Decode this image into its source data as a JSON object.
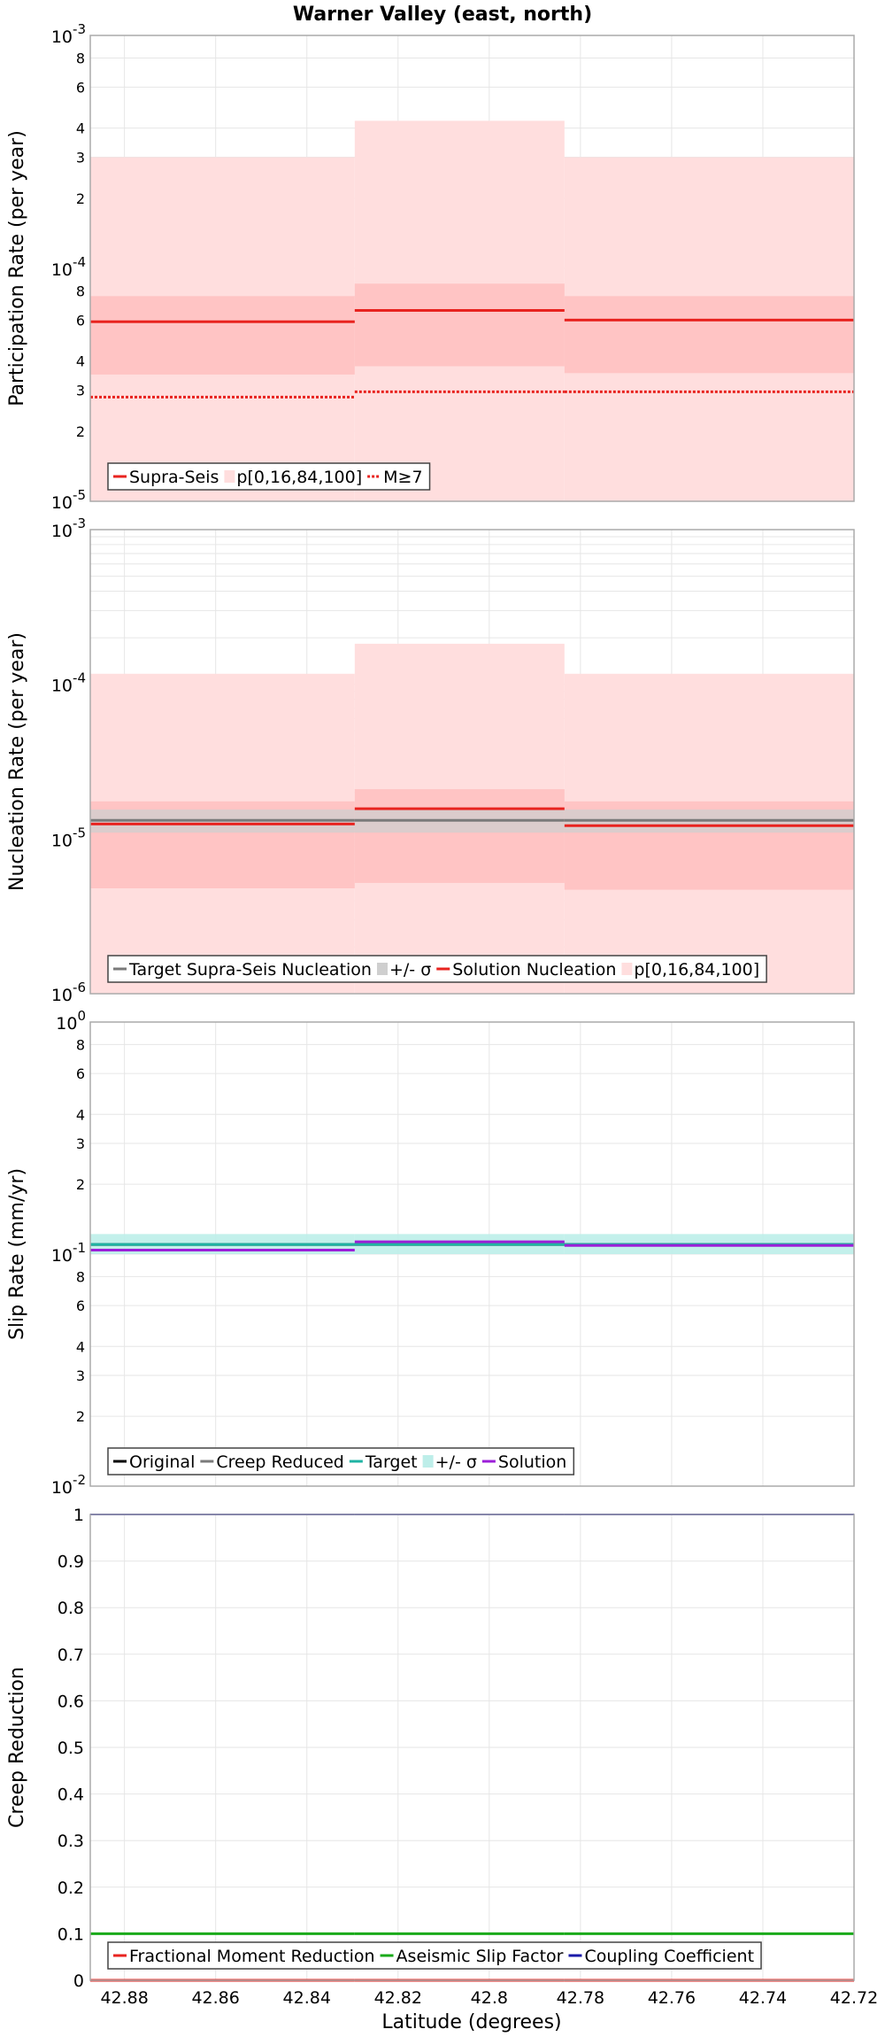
{
  "title": "Warner Valley (east, north)",
  "xlabel": "Latitude (degrees)",
  "x_ticks": [
    "42.88",
    "42.86",
    "42.84",
    "42.82",
    "42.8",
    "42.78",
    "42.76",
    "42.74",
    "42.72"
  ],
  "x_tick_values": [
    42.88,
    42.86,
    42.84,
    42.82,
    42.8,
    42.78,
    42.76,
    42.74,
    42.72
  ],
  "xlim": [
    42.8875,
    42.72
  ],
  "sections": [
    {
      "start": 42.8875,
      "end": 42.8295
    },
    {
      "start": 42.8295,
      "end": 42.7835
    },
    {
      "start": 42.7835,
      "end": 42.72
    }
  ],
  "colors": {
    "red": "#e8231f",
    "light_red": "#ffdede",
    "mid_red": "#ffc4c4",
    "gray": "#7a7a7a",
    "light_gray": "#cfcfcf",
    "cyan": "#1fb3a3",
    "light_cyan": "#bdeee9",
    "purple": "#9b1fd8",
    "blue": "#1a1aa8",
    "green": "#1aaa1a",
    "black": "#000000"
  },
  "chart_data": [
    {
      "type": "line",
      "ylabel": "Participation Rate (per year)",
      "yscale": "log",
      "ylim": [
        1e-05,
        0.001
      ],
      "y_major_ticks": [
        {
          "value": 1e-05,
          "base": "10",
          "exp": "-5"
        },
        {
          "value": 0.0001,
          "base": "10",
          "exp": "-4"
        },
        {
          "value": 0.001,
          "base": "10",
          "exp": "-3"
        }
      ],
      "y_minor_ticks": [
        {
          "value": 2e-05,
          "label": "2"
        },
        {
          "value": 3e-05,
          "label": "3"
        },
        {
          "value": 4e-05,
          "label": "4"
        },
        {
          "value": 6e-05,
          "label": "6"
        },
        {
          "value": 8e-05,
          "label": "8"
        },
        {
          "value": 0.0002,
          "label": "2"
        },
        {
          "value": 0.0003,
          "label": "3"
        },
        {
          "value": 0.0004,
          "label": "4"
        },
        {
          "value": 0.0006,
          "label": "6"
        },
        {
          "value": 0.0008,
          "label": "8"
        }
      ],
      "bands": [
        {
          "name": "p[0,16,84,100]",
          "kind": "outer",
          "lo": [
            1e-05,
            1e-05,
            1e-05
          ],
          "hi": [
            0.0003,
            0.00043,
            0.0003
          ]
        },
        {
          "name": "",
          "kind": "inner",
          "lo": [
            3.5e-05,
            3.8e-05,
            3.55e-05
          ],
          "hi": [
            7.6e-05,
            8.6e-05,
            7.6e-05
          ]
        }
      ],
      "series": [
        {
          "name": "Supra-Seis",
          "style": "solid",
          "values": [
            5.9e-05,
            6.6e-05,
            6e-05
          ]
        },
        {
          "name": "M≥7",
          "style": "dotted",
          "values": [
            2.8e-05,
            2.95e-05,
            2.95e-05
          ]
        }
      ],
      "legend": [
        "Supra-Seis",
        "p[0,16,84,100]",
        "M≥7"
      ],
      "legend_position": "bottom-left"
    },
    {
      "type": "line",
      "ylabel": "Nucleation Rate (per year)",
      "yscale": "log",
      "ylim": [
        1e-06,
        0.001
      ],
      "y_major_ticks": [
        {
          "value": 1e-06,
          "base": "10",
          "exp": "-6"
        },
        {
          "value": 1e-05,
          "base": "10",
          "exp": "-5"
        },
        {
          "value": 0.0001,
          "base": "10",
          "exp": "-4"
        },
        {
          "value": 0.001,
          "base": "10",
          "exp": "-3"
        }
      ],
      "y_minor_ticks": [],
      "bands": [
        {
          "name": "p[0,16,84,100]",
          "kind": "outer",
          "lo": [
            1e-06,
            1e-06,
            1e-06
          ],
          "hi": [
            0.000117,
            0.000183,
            0.000117
          ]
        },
        {
          "name": "",
          "kind": "inner",
          "lo": [
            4.8e-06,
            5.2e-06,
            4.7e-06
          ],
          "hi": [
            1.75e-05,
            2.1e-05,
            1.75e-05
          ]
        },
        {
          "name": "+/- σ",
          "kind": "sigma",
          "lo": [
            1.1e-05,
            1.1e-05,
            1.1e-05
          ],
          "hi": [
            1.55e-05,
            1.55e-05,
            1.55e-05
          ]
        }
      ],
      "series": [
        {
          "name": "Target Supra-Seis Nucleation",
          "style": "solid",
          "values": [
            1.32e-05,
            1.32e-05,
            1.32e-05
          ]
        },
        {
          "name": "Solution Nucleation",
          "style": "solid",
          "values": [
            1.25e-05,
            1.57e-05,
            1.22e-05
          ]
        }
      ],
      "legend": [
        "Target Supra-Seis Nucleation",
        "+/- σ",
        "Solution Nucleation",
        "p[0,16,84,100]"
      ],
      "legend_position": "bottom-left"
    },
    {
      "type": "line",
      "ylabel": "Slip Rate (mm/yr)",
      "yscale": "log",
      "ylim": [
        0.01,
        1
      ],
      "y_major_ticks": [
        {
          "value": 0.01,
          "base": "10",
          "exp": "-2"
        },
        {
          "value": 0.1,
          "base": "10",
          "exp": "-1"
        },
        {
          "value": 1,
          "base": "10",
          "exp": "0"
        }
      ],
      "y_minor_ticks": [
        {
          "value": 0.02,
          "label": "2"
        },
        {
          "value": 0.03,
          "label": "3"
        },
        {
          "value": 0.04,
          "label": "4"
        },
        {
          "value": 0.06,
          "label": "6"
        },
        {
          "value": 0.08,
          "label": "8"
        },
        {
          "value": 0.2,
          "label": "2"
        },
        {
          "value": 0.3,
          "label": "3"
        },
        {
          "value": 0.4,
          "label": "4"
        },
        {
          "value": 0.6,
          "label": "6"
        },
        {
          "value": 0.8,
          "label": "8"
        }
      ],
      "bands": [
        {
          "name": "+/- σ",
          "kind": "sigma",
          "lo": [
            0.1,
            0.1,
            0.1
          ],
          "hi": [
            0.122,
            0.122,
            0.122
          ]
        }
      ],
      "series": [
        {
          "name": "Original",
          "style": "solid",
          "values": [
            0.11,
            0.11,
            0.11
          ]
        },
        {
          "name": "Creep Reduced",
          "style": "solid",
          "values": [
            0.11,
            0.11,
            0.11
          ]
        },
        {
          "name": "Target",
          "style": "solid",
          "values": [
            0.11,
            0.11,
            0.11
          ]
        },
        {
          "name": "Solution",
          "style": "solid",
          "values": [
            0.104,
            0.113,
            0.109
          ]
        }
      ],
      "legend": [
        "Original",
        "Creep Reduced",
        "Target",
        "+/- σ",
        "Solution"
      ],
      "legend_position": "bottom-left"
    },
    {
      "type": "line",
      "ylabel": "Creep Reduction",
      "yscale": "linear",
      "ylim": [
        0,
        1
      ],
      "y_ticks": [
        "0",
        "0.1",
        "0.2",
        "0.3",
        "0.4",
        "0.5",
        "0.6",
        "0.7",
        "0.8",
        "0.9",
        "1"
      ],
      "y_tick_values": [
        0,
        0.1,
        0.2,
        0.3,
        0.4,
        0.5,
        0.6,
        0.7,
        0.8,
        0.9,
        1
      ],
      "series": [
        {
          "name": "Fractional Moment Reduction",
          "style": "solid",
          "values": [
            0,
            0,
            0
          ]
        },
        {
          "name": "Aseismic Slip Factor",
          "style": "solid",
          "values": [
            0.1,
            0.1,
            0.1
          ]
        },
        {
          "name": "Coupling Coefficient",
          "style": "solid",
          "values": [
            1,
            1,
            1
          ]
        }
      ],
      "legend": [
        "Fractional Moment Reduction",
        "Aseismic Slip Factor",
        "Coupling Coefficient"
      ],
      "legend_position": "bottom-left"
    }
  ]
}
